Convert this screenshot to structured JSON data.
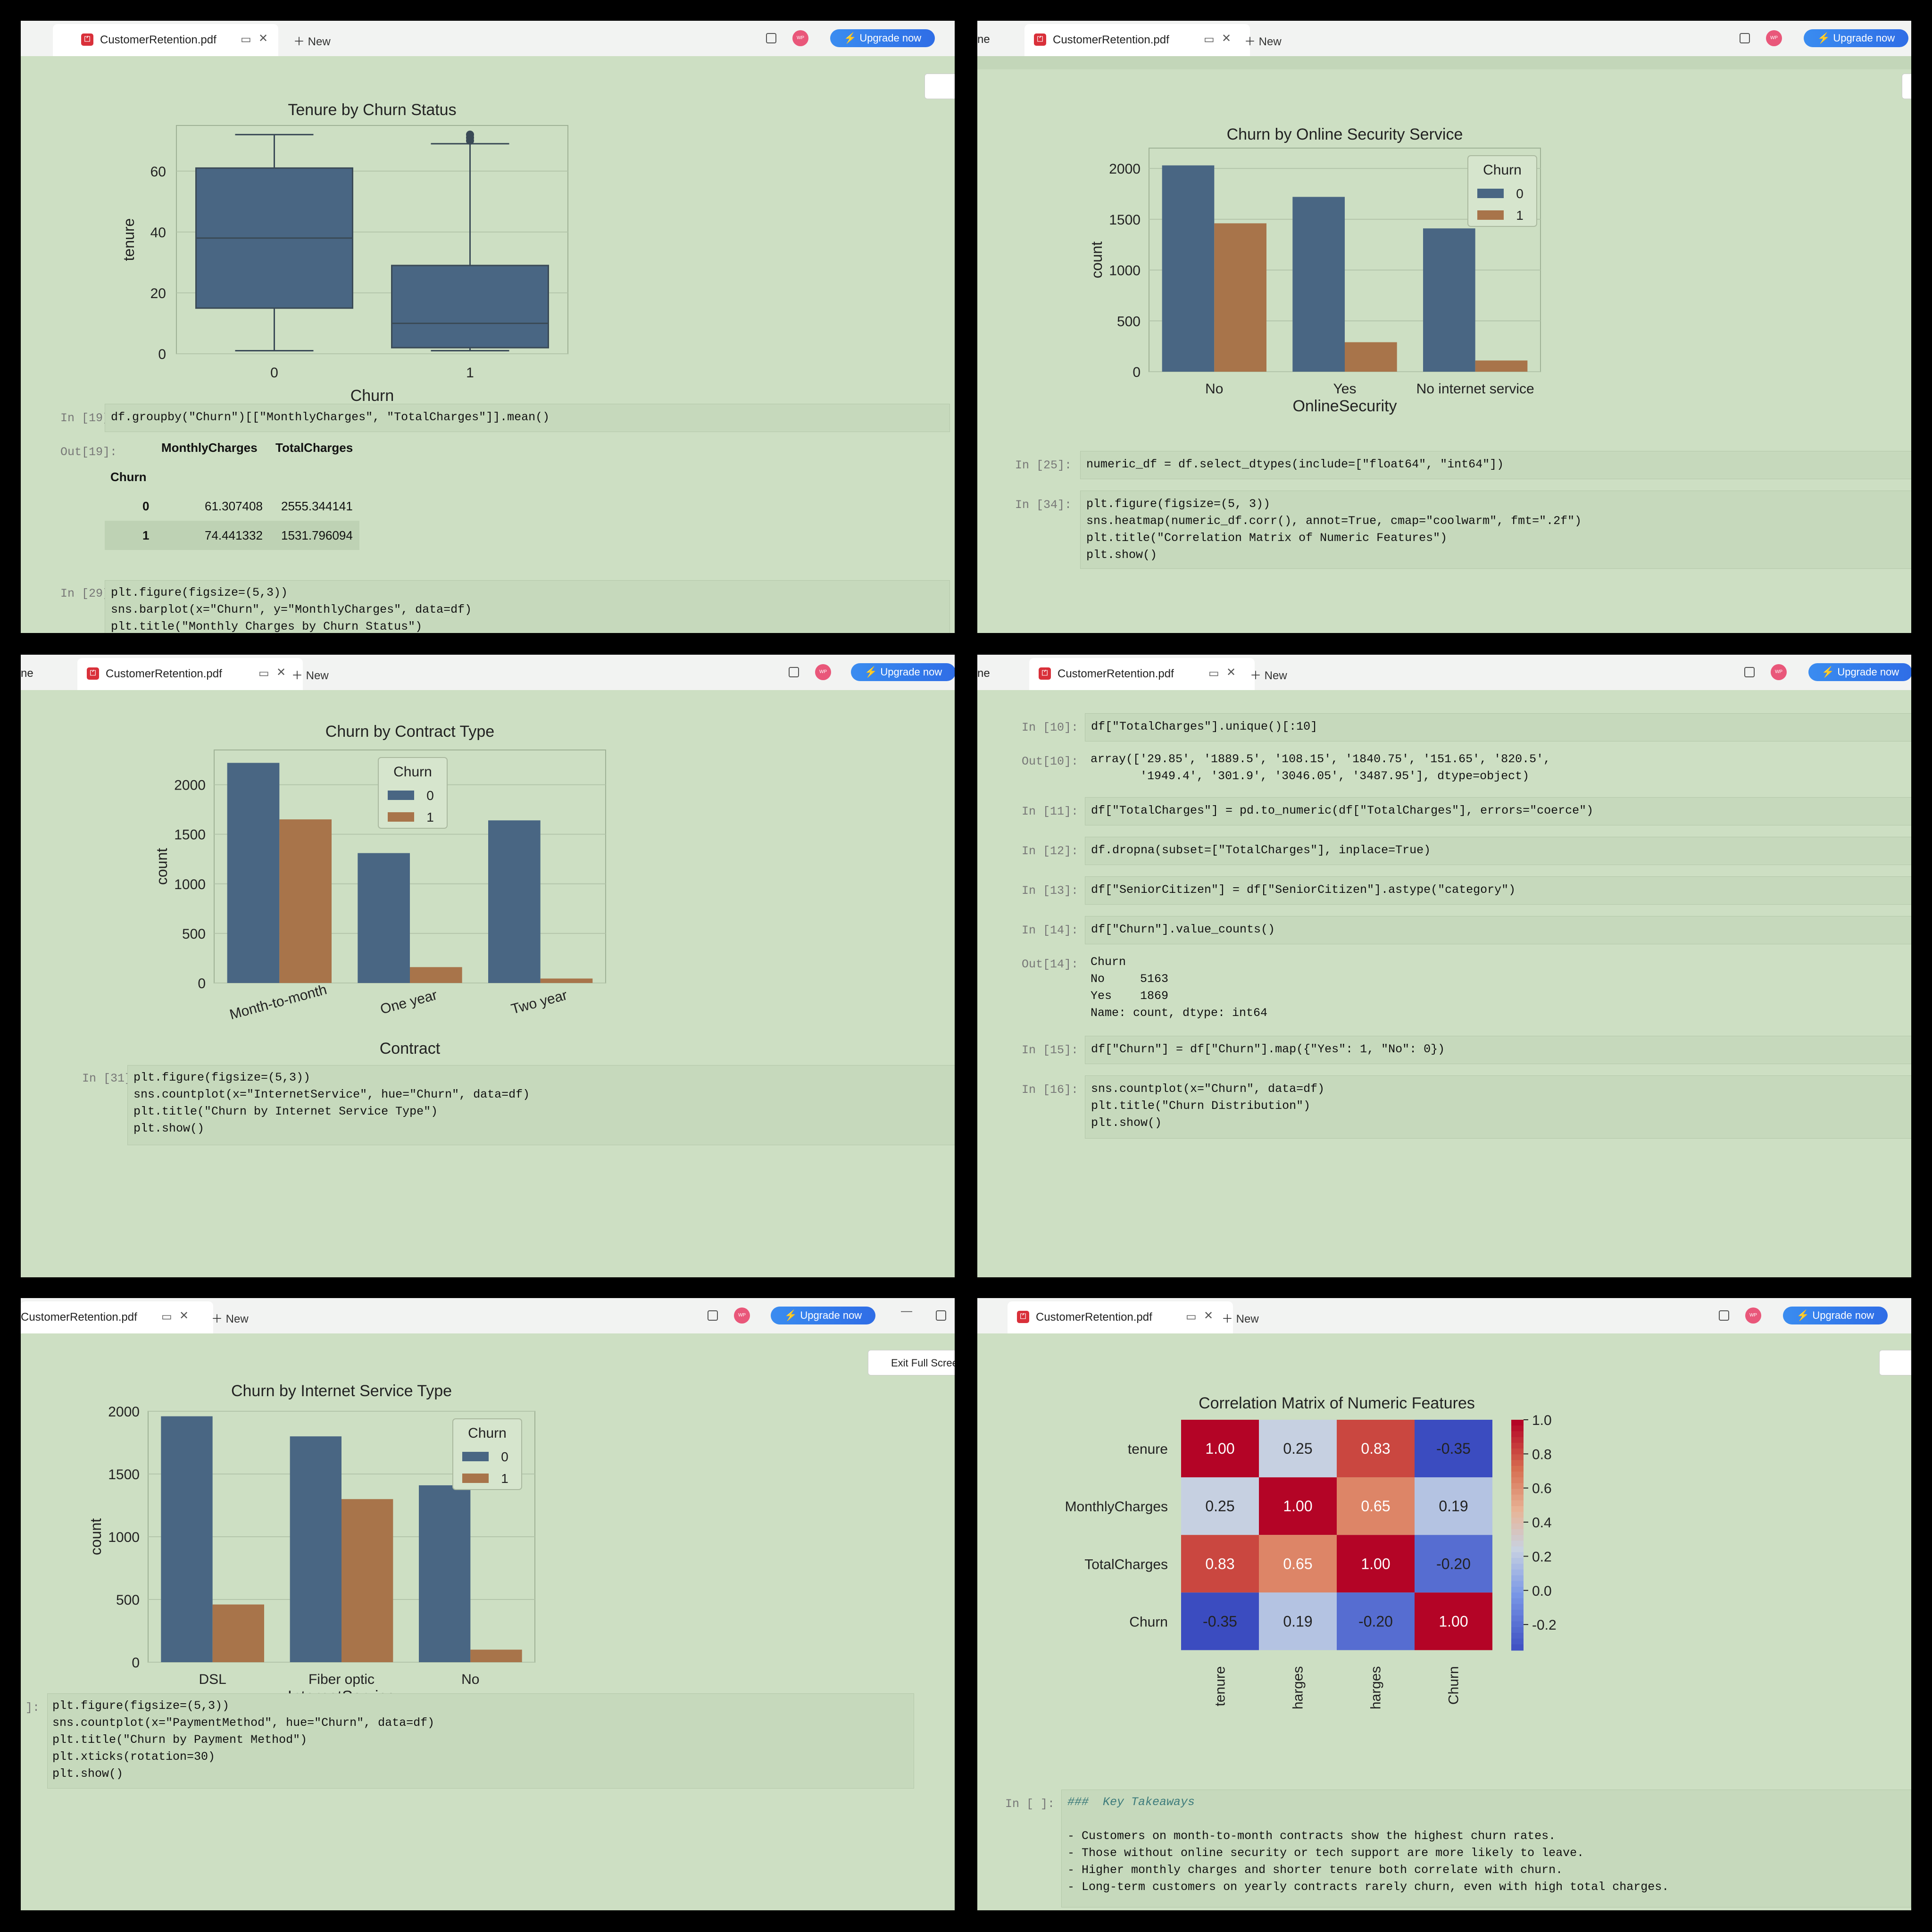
{
  "colors": {
    "page_bg": "#cddfc3",
    "bar_blue": "#496683",
    "bar_orange": "#a8744a",
    "upgrade": "#3a8cf0"
  },
  "tab": {
    "filename": "CustomerRetention.pdf",
    "new_label": "New",
    "upgrade_label": "Upgrade now",
    "avatar_label": "WP",
    "partial_tab": "ne"
  },
  "exit_fullscreen": "Exit Full Screen",
  "panel1": {
    "chart_data": {
      "type": "box",
      "title": "Tenure by Churn Status",
      "xlabel": "Churn",
      "ylabel": "tenure",
      "categories": [
        "0",
        "1"
      ],
      "ylim": [
        0,
        75
      ],
      "yticks": [
        "0",
        "20",
        "40",
        "60"
      ],
      "boxes": [
        {
          "name": "0",
          "min": 1,
          "q1": 15,
          "median": 38,
          "q3": 61,
          "max": 72
        },
        {
          "name": "1",
          "min": 1,
          "q1": 2,
          "median": 10,
          "q3": 29,
          "max": 69,
          "outliers": [
            70,
            71,
            72
          ]
        }
      ]
    },
    "cell19": {
      "prompt": "In [19]:",
      "code": "df.groupby(\"Churn\")[[\"MonthlyCharges\", \"TotalCharges\"]].mean()"
    },
    "out19": {
      "prompt": "Out[19]:",
      "columns": [
        "MonthlyCharges",
        "TotalCharges"
      ],
      "index_name": "Churn",
      "rows": [
        {
          "idx": "0",
          "v1": "61.307408",
          "v2": "2555.344141"
        },
        {
          "idx": "1",
          "v1": "74.441332",
          "v2": "1531.796094"
        }
      ]
    },
    "cell29": {
      "prompt": "In [29]:",
      "lines": [
        "plt.figure(figsize=(5,3))",
        "sns.barplot(x=\"Churn\", y=\"MonthlyCharges\", data=df)",
        "plt.title(\"Monthly Charges by Churn Status\")"
      ]
    }
  },
  "panel2": {
    "chart_data": {
      "type": "bar",
      "title": "Churn by Online Security Service",
      "xlabel": "OnlineSecurity",
      "ylabel": "count",
      "categories": [
        "No",
        "Yes",
        "No internet service"
      ],
      "ylim": [
        0,
        2200
      ],
      "yticks": [
        "0",
        "500",
        "1000",
        "1500",
        "2000"
      ],
      "legend_title": "Churn",
      "legend": "top-right",
      "series": [
        {
          "name": "0",
          "values": [
            2030,
            1720,
            1410
          ]
        },
        {
          "name": "1",
          "values": [
            1460,
            290,
            110
          ]
        }
      ]
    },
    "cell25": {
      "prompt": "In [25]:",
      "code": "numeric_df = df.select_dtypes(include=[\"float64\", \"int64\"])"
    },
    "cell34": {
      "prompt": "In [34]:",
      "lines": [
        "plt.figure(figsize=(5, 3))",
        "sns.heatmap(numeric_df.corr(), annot=True, cmap=\"coolwarm\", fmt=\".2f\")",
        "plt.title(\"Correlation Matrix of Numeric Features\")",
        "plt.show()"
      ]
    }
  },
  "panel3": {
    "chart_data": {
      "type": "bar",
      "title": "Churn by Contract Type",
      "xlabel": "Contract",
      "ylabel": "count",
      "categories": [
        "Month-to-month",
        "One year",
        "Two year"
      ],
      "ylim": [
        0,
        2350
      ],
      "yticks": [
        "0",
        "500",
        "1000",
        "1500",
        "2000"
      ],
      "legend_title": "Churn",
      "legend": "top-center",
      "series": [
        {
          "name": "0",
          "values": [
            2220,
            1310,
            1640
          ]
        },
        {
          "name": "1",
          "values": [
            1650,
            160,
            45
          ]
        }
      ]
    },
    "cell31": {
      "prompt": "In [31]:",
      "lines": [
        "plt.figure(figsize=(5,3))",
        "sns.countplot(x=\"InternetService\", hue=\"Churn\", data=df)",
        "plt.title(\"Churn by Internet Service Type\")",
        "plt.show()"
      ]
    }
  },
  "panel4": {
    "c10": {
      "prompt": "In [10]:",
      "code": "df[\"TotalCharges\"].unique()[:10]"
    },
    "o10": {
      "prompt": "Out[10]:",
      "l1": "array(['29.85', '1889.5', '108.15', '1840.75', '151.65', '820.5',",
      "l2": "       '1949.4', '301.9', '3046.05', '3487.95'], dtype=object)"
    },
    "c11": {
      "prompt": "In [11]:",
      "code": "df[\"TotalCharges\"] = pd.to_numeric(df[\"TotalCharges\"], errors=\"coerce\")"
    },
    "c12": {
      "prompt": "In [12]:",
      "code": "df.dropna(subset=[\"TotalCharges\"], inplace=True)"
    },
    "c13": {
      "prompt": "In [13]:",
      "code": "df[\"SeniorCitizen\"] = df[\"SeniorCitizen\"].astype(\"category\")"
    },
    "c14": {
      "prompt": "In [14]:",
      "code": "df[\"Churn\"].value_counts()"
    },
    "o14": {
      "prompt": "Out[14]:",
      "lines": [
        "Churn",
        "No     5163",
        "Yes    1869",
        "Name: count, dtype: int64"
      ]
    },
    "c15": {
      "prompt": "In [15]:",
      "code": "df[\"Churn\"] = df[\"Churn\"].map({\"Yes\": 1, \"No\": 0})"
    },
    "c16": {
      "prompt": "In [16]:",
      "lines": [
        "sns.countplot(x=\"Churn\", data=df)",
        "plt.title(\"Churn Distribution\")",
        "plt.show()"
      ]
    }
  },
  "panel5": {
    "chart_data": {
      "type": "bar",
      "title": "Churn by Internet Service Type",
      "xlabel": "InternetService",
      "ylabel": "count",
      "categories": [
        "DSL",
        "Fiber optic",
        "No"
      ],
      "ylim": [
        0,
        2000
      ],
      "yticks": [
        "0",
        "500",
        "1000",
        "1500",
        "2000"
      ],
      "legend_title": "Churn",
      "legend": "top-right",
      "series": [
        {
          "name": "0",
          "values": [
            1960,
            1800,
            1410
          ]
        },
        {
          "name": "1",
          "values": [
            460,
            1300,
            100
          ]
        }
      ]
    },
    "cell": {
      "prompt": "]:",
      "lines": [
        "plt.figure(figsize=(5,3))",
        "sns.countplot(x=\"PaymentMethod\", hue=\"Churn\", data=df)",
        "plt.title(\"Churn by Payment Method\")",
        "plt.xticks(rotation=30)",
        "plt.show()"
      ]
    }
  },
  "panel6": {
    "chart_data": {
      "type": "heatmap",
      "title": "Correlation Matrix of Numeric Features",
      "labels": [
        "tenure",
        "MonthlyCharges",
        "TotalCharges",
        "Churn"
      ],
      "matrix": [
        [
          1.0,
          0.25,
          0.83,
          -0.35
        ],
        [
          0.25,
          1.0,
          0.65,
          0.19
        ],
        [
          0.83,
          0.65,
          1.0,
          -0.2
        ],
        [
          -0.35,
          0.19,
          -0.2,
          1.0
        ]
      ],
      "annot": [
        [
          "1.00",
          "0.25",
          "0.83",
          "-0.35"
        ],
        [
          "0.25",
          "1.00",
          "0.65",
          "0.19"
        ],
        [
          "0.83",
          "0.65",
          "1.00",
          "-0.20"
        ],
        [
          "-0.35",
          "0.19",
          "-0.20",
          "1.00"
        ]
      ],
      "cmap": "coolwarm",
      "colorbar_ticks": [
        "1.0",
        "0.8",
        "0.6",
        "0.4",
        "0.2",
        "0.0",
        "-0.2"
      ]
    },
    "md": {
      "prompt": "In [ ]:",
      "heading": "Key Takeaways",
      "hashes": "###",
      "bullets": [
        "Customers on month-to-month contracts show the highest churn rates.",
        "Those without online security or tech support are more likely to leave.",
        "Higher monthly charges and shorter tenure both correlate with churn.",
        "Long-term customers on yearly contracts rarely churn, even with high total charges."
      ]
    }
  }
}
